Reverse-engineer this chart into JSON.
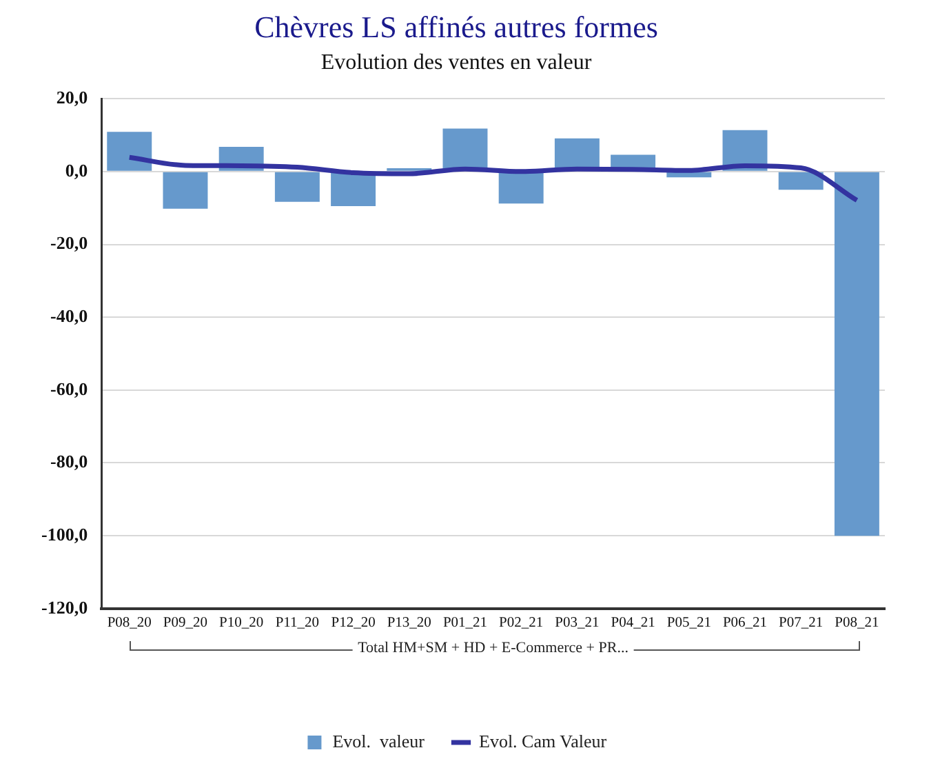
{
  "chart_data": {
    "type": "bar",
    "title": "Chèvres LS affinés autres formes",
    "subtitle": "Evolution des ventes en valeur",
    "categories": [
      "P08_20",
      "P09_20",
      "P10_20",
      "P11_20",
      "P12_20",
      "P13_20",
      "P01_21",
      "P02_21",
      "P03_21",
      "P04_21",
      "P05_21",
      "P06_21",
      "P07_21",
      "P08_21"
    ],
    "series": [
      {
        "name": "Evol.  valeur",
        "color": "#6699cc",
        "values": [
          10.9,
          -10.2,
          6.8,
          -8.3,
          -9.5,
          0.9,
          11.8,
          -8.8,
          9.1,
          4.6,
          -1.6,
          11.4,
          -5.0,
          -100
        ]
      },
      {
        "name": "Evol. Cam Valeur",
        "type": "line",
        "color": "#3333a0",
        "values": [
          3.9,
          1.7,
          1.6,
          1.2,
          -0.3,
          -0.6,
          0.7,
          0.0,
          0.7,
          0.6,
          0.3,
          1.6,
          1.0,
          -7.9
        ]
      }
    ],
    "ylim": [
      -120,
      20
    ],
    "yticks": [
      {
        "value": -120,
        "label": "-120,0"
      },
      {
        "value": -100,
        "label": "-100,0"
      },
      {
        "value": -80,
        "label": "-80,0"
      },
      {
        "value": -60,
        "label": "-60,0"
      },
      {
        "value": -40,
        "label": "-40,0"
      },
      {
        "value": -20,
        "label": "-20,0"
      },
      {
        "value": 0,
        "label": "0,0"
      },
      {
        "value": 20,
        "label": "20,0"
      }
    ],
    "grid": "y",
    "legend": "bottom",
    "marker": "none",
    "line_style": "solid",
    "annotations": [
      "Total HM+SM + HD + E-Commerce + PR..."
    ]
  }
}
